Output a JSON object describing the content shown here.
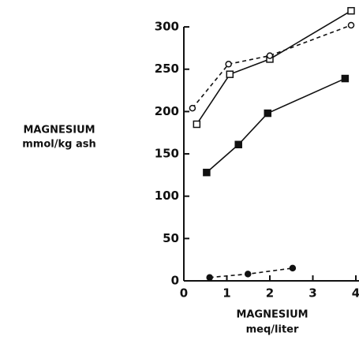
{
  "chart_data": {
    "type": "line",
    "x_label": "MAGNESIUM",
    "x_unit": "meq/liter",
    "y_label": "MAGNESIUM",
    "y_unit": "mmol/kg ash",
    "xlim": [
      0,
      4
    ],
    "ylim": [
      0,
      315
    ],
    "xticks": [
      0,
      1,
      2,
      3,
      4
    ],
    "yticks": [
      0,
      50,
      100,
      150,
      200,
      250,
      300
    ],
    "series": [
      {
        "color": "#111111",
        "dash": false,
        "marker": "square-open",
        "x": [
          0.3,
          1.07,
          2.0,
          3.89
        ],
        "values": [
          185,
          244,
          262,
          319
        ]
      },
      {
        "color": "#111111",
        "dash": true,
        "marker": "circle-open",
        "x": [
          0.2,
          1.04,
          2.0,
          3.89
        ],
        "values": [
          204,
          256,
          266,
          302
        ]
      },
      {
        "color": "#111111",
        "dash": false,
        "marker": "square-filled",
        "x": [
          0.53,
          1.27,
          1.95,
          3.75
        ],
        "values": [
          128,
          161,
          198,
          239
        ]
      },
      {
        "color": "#111111",
        "dash": true,
        "marker": "circle-filled",
        "x": [
          0.6,
          1.49,
          2.53
        ],
        "values": [
          4,
          8,
          15
        ]
      }
    ]
  }
}
